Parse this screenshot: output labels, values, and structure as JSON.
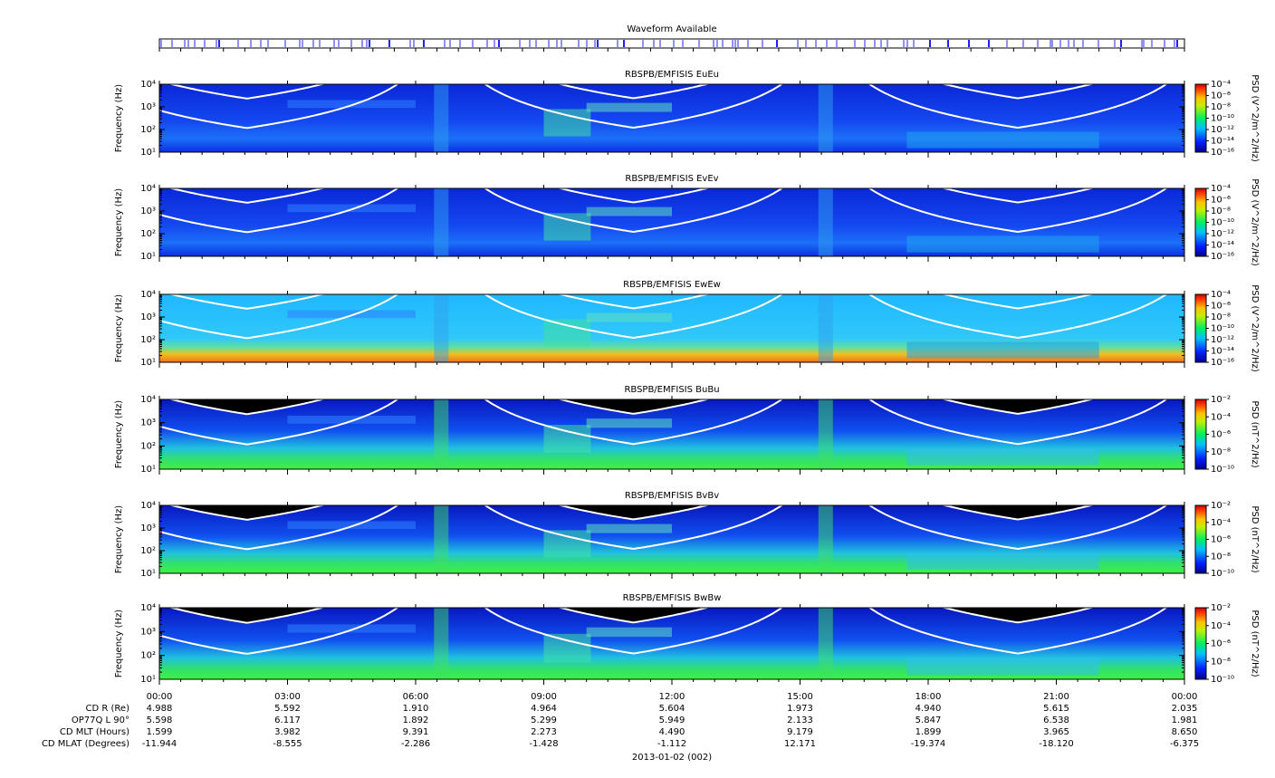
{
  "waveform": {
    "title": "Waveform Available"
  },
  "x_axis": {
    "xlim": [
      0,
      24
    ],
    "xticks": [
      {
        "value": 0,
        "label": "00:00"
      },
      {
        "value": 3,
        "label": "03:00"
      },
      {
        "value": 6,
        "label": "06:00"
      },
      {
        "value": 9,
        "label": "09:00"
      },
      {
        "value": 12,
        "label": "12:00"
      },
      {
        "value": 15,
        "label": "15:00"
      },
      {
        "value": 18,
        "label": "18:00"
      },
      {
        "value": 21,
        "label": "21:00"
      },
      {
        "value": 24,
        "label": "00:00"
      }
    ]
  },
  "chart_data": [
    {
      "type": "spectrogram",
      "title": "RBSPB/EMFISIS  EuEu",
      "ylabel": "Frequency (Hz)",
      "log_y": true,
      "ylim": [
        10,
        10000
      ],
      "yticks": [
        {
          "value": 10,
          "label": "10¹"
        },
        {
          "value": 100,
          "label": "10²"
        },
        {
          "value": 1000,
          "label": "10³"
        },
        {
          "value": 10000,
          "label": "10⁴"
        }
      ],
      "colorbar": {
        "label": "PSD (V^2/m^2/Hz)",
        "lim": [
          1e-16,
          0.0001
        ],
        "ticks": [
          {
            "value": 0.0001,
            "label": "10⁻⁴"
          },
          {
            "value": 1e-06,
            "label": "10⁻⁶"
          },
          {
            "value": 1e-08,
            "label": "10⁻⁸"
          },
          {
            "value": 1e-10,
            "label": "10⁻¹⁰"
          },
          {
            "value": 1e-12,
            "label": "10⁻¹²"
          },
          {
            "value": 1e-14,
            "label": "10⁻¹⁴"
          },
          {
            "value": 1e-16,
            "label": "10⁻¹⁶"
          }
        ]
      }
    },
    {
      "type": "spectrogram",
      "title": "RBSPB/EMFISIS  EvEv",
      "ylabel": "Frequency (Hz)",
      "log_y": true,
      "ylim": [
        10,
        10000
      ],
      "yticks": [
        {
          "value": 10,
          "label": "10¹"
        },
        {
          "value": 100,
          "label": "10²"
        },
        {
          "value": 1000,
          "label": "10³"
        },
        {
          "value": 10000,
          "label": "10⁴"
        }
      ],
      "colorbar": {
        "label": "PSD (V^2/m^2/Hz)",
        "lim": [
          1e-16,
          0.0001
        ],
        "ticks": [
          {
            "value": 0.0001,
            "label": "10⁻⁴"
          },
          {
            "value": 1e-06,
            "label": "10⁻⁶"
          },
          {
            "value": 1e-08,
            "label": "10⁻⁸"
          },
          {
            "value": 1e-10,
            "label": "10⁻¹⁰"
          },
          {
            "value": 1e-12,
            "label": "10⁻¹²"
          },
          {
            "value": 1e-14,
            "label": "10⁻¹⁴"
          },
          {
            "value": 1e-16,
            "label": "10⁻¹⁶"
          }
        ]
      }
    },
    {
      "type": "spectrogram",
      "title": "RBSPB/EMFISIS  EwEw",
      "ylabel": "Frequency (Hz)",
      "log_y": true,
      "ylim": [
        10,
        10000
      ],
      "yticks": [
        {
          "value": 10,
          "label": "10¹"
        },
        {
          "value": 100,
          "label": "10²"
        },
        {
          "value": 1000,
          "label": "10³"
        },
        {
          "value": 10000,
          "label": "10⁴"
        }
      ],
      "colorbar": {
        "label": "PSD (V^2/m^2/Hz)",
        "lim": [
          1e-16,
          0.0001
        ],
        "ticks": [
          {
            "value": 0.0001,
            "label": "10⁻⁴"
          },
          {
            "value": 1e-06,
            "label": "10⁻⁶"
          },
          {
            "value": 1e-08,
            "label": "10⁻⁸"
          },
          {
            "value": 1e-10,
            "label": "10⁻¹⁰"
          },
          {
            "value": 1e-12,
            "label": "10⁻¹²"
          },
          {
            "value": 1e-14,
            "label": "10⁻¹⁴"
          },
          {
            "value": 1e-16,
            "label": "10⁻¹⁶"
          }
        ]
      }
    },
    {
      "type": "spectrogram",
      "title": "RBSPB/EMFISIS  BuBu",
      "ylabel": "Frequency (Hz)",
      "log_y": true,
      "ylim": [
        10,
        10000
      ],
      "yticks": [
        {
          "value": 10,
          "label": "10¹"
        },
        {
          "value": 100,
          "label": "10²"
        },
        {
          "value": 1000,
          "label": "10³"
        },
        {
          "value": 10000,
          "label": "10⁴"
        }
      ],
      "colorbar": {
        "label": "PSD (nT^2/Hz)",
        "lim": [
          1e-10,
          0.01
        ],
        "ticks": [
          {
            "value": 0.01,
            "label": "10⁻²"
          },
          {
            "value": 0.0001,
            "label": "10⁻⁴"
          },
          {
            "value": 1e-06,
            "label": "10⁻⁶"
          },
          {
            "value": 1e-08,
            "label": "10⁻⁸"
          },
          {
            "value": 1e-10,
            "label": "10⁻¹⁰"
          }
        ]
      }
    },
    {
      "type": "spectrogram",
      "title": "RBSPB/EMFISIS  BvBv",
      "ylabel": "Frequency (Hz)",
      "log_y": true,
      "ylim": [
        10,
        10000
      ],
      "yticks": [
        {
          "value": 10,
          "label": "10¹"
        },
        {
          "value": 100,
          "label": "10²"
        },
        {
          "value": 1000,
          "label": "10³"
        },
        {
          "value": 10000,
          "label": "10⁴"
        }
      ],
      "colorbar": {
        "label": "PSD (nT^2/Hz)",
        "lim": [
          1e-10,
          0.01
        ],
        "ticks": [
          {
            "value": 0.01,
            "label": "10⁻²"
          },
          {
            "value": 0.0001,
            "label": "10⁻⁴"
          },
          {
            "value": 1e-06,
            "label": "10⁻⁶"
          },
          {
            "value": 1e-08,
            "label": "10⁻⁸"
          },
          {
            "value": 1e-10,
            "label": "10⁻¹⁰"
          }
        ]
      }
    },
    {
      "type": "spectrogram",
      "title": "RBSPB/EMFISIS  BwBw",
      "ylabel": "Frequency (Hz)",
      "log_y": true,
      "ylim": [
        10,
        10000
      ],
      "yticks": [
        {
          "value": 10,
          "label": "10¹"
        },
        {
          "value": 100,
          "label": "10²"
        },
        {
          "value": 1000,
          "label": "10³"
        },
        {
          "value": 10000,
          "label": "10⁴"
        }
      ],
      "colorbar": {
        "label": "PSD (nT^2/Hz)",
        "lim": [
          1e-10,
          0.01
        ],
        "ticks": [
          {
            "value": 0.01,
            "label": "10⁻²"
          },
          {
            "value": 0.0001,
            "label": "10⁻⁴"
          },
          {
            "value": 1e-06,
            "label": "10⁻⁶"
          },
          {
            "value": 1e-08,
            "label": "10⁻⁸"
          },
          {
            "value": 1e-10,
            "label": "10⁻¹⁰"
          }
        ]
      }
    }
  ],
  "ephemeris": {
    "rows": [
      {
        "label": "CD R (Re)",
        "values": [
          "4.988",
          "5.592",
          "1.910",
          "4.964",
          "5.604",
          "1.973",
          "4.940",
          "5.615",
          "2.035"
        ]
      },
      {
        "label": "OP77Q L 90°",
        "values": [
          "5.598",
          "6.117",
          "1.892",
          "5.299",
          "5.949",
          "2.133",
          "5.847",
          "6.538",
          "1.981"
        ]
      },
      {
        "label": "CD MLT (Hours)",
        "values": [
          "1.599",
          "3.982",
          "9.391",
          "2.273",
          "4.490",
          "9.179",
          "1.899",
          "3.965",
          "8.650"
        ]
      },
      {
        "label": "CD MLAT (Degrees)",
        "values": [
          "-11.944",
          "-8.555",
          "-2.286",
          "-1.428",
          "-1.112",
          "12.171",
          "-19.374",
          "-18.120",
          "-6.375"
        ]
      }
    ]
  },
  "date": "2013-01-02 (002)"
}
